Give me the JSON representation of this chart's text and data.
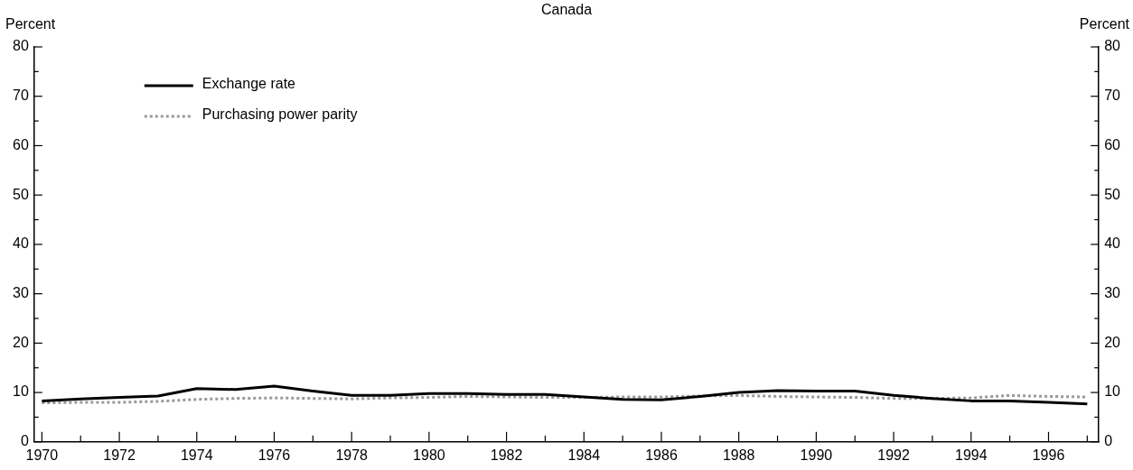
{
  "chart_data": {
    "type": "line",
    "title": "Canada",
    "ylabel": "Percent",
    "y2label": "Percent",
    "x": [
      1970,
      1971,
      1972,
      1973,
      1974,
      1975,
      1976,
      1977,
      1978,
      1979,
      1980,
      1981,
      1982,
      1983,
      1984,
      1985,
      1986,
      1987,
      1988,
      1989,
      1990,
      1991,
      1992,
      1993,
      1994,
      1995,
      1996,
      1997
    ],
    "series": [
      {
        "name": "Exchange rate",
        "color": "#000000",
        "line_style": "solid",
        "values": [
          8.3,
          8.7,
          9.0,
          9.3,
          10.8,
          10.6,
          11.3,
          10.3,
          9.4,
          9.4,
          9.8,
          9.8,
          9.6,
          9.6,
          9.1,
          8.6,
          8.5,
          9.2,
          10.0,
          10.4,
          10.3,
          10.3,
          9.4,
          8.8,
          8.3,
          8.3,
          8.0,
          7.7
        ]
      },
      {
        "name": "Purchasing power parity",
        "color": "#999999",
        "line_style": "dotted",
        "values": [
          7.9,
          8.0,
          8.0,
          8.2,
          8.6,
          8.8,
          8.9,
          8.8,
          8.7,
          8.9,
          9.0,
          9.2,
          9.1,
          9.0,
          9.0,
          9.1,
          9.1,
          9.3,
          9.4,
          9.2,
          9.1,
          9.0,
          8.8,
          8.8,
          8.9,
          9.4,
          9.2,
          9.1
        ]
      }
    ],
    "xlim": [
      1969.8,
      1997.3
    ],
    "xticks": [
      {
        "value": 1970,
        "label": "1970"
      },
      {
        "value": 1971,
        "label": null
      },
      {
        "value": 1972,
        "label": "1972"
      },
      {
        "value": 1973,
        "label": null
      },
      {
        "value": 1974,
        "label": "1974"
      },
      {
        "value": 1975,
        "label": null
      },
      {
        "value": 1976,
        "label": "1976"
      },
      {
        "value": 1977,
        "label": null
      },
      {
        "value": 1978,
        "label": "1978"
      },
      {
        "value": 1979,
        "label": null
      },
      {
        "value": 1980,
        "label": "1980"
      },
      {
        "value": 1981,
        "label": null
      },
      {
        "value": 1982,
        "label": "1982"
      },
      {
        "value": 1983,
        "label": null
      },
      {
        "value": 1984,
        "label": "1984"
      },
      {
        "value": 1985,
        "label": null
      },
      {
        "value": 1986,
        "label": "1986"
      },
      {
        "value": 1987,
        "label": null
      },
      {
        "value": 1988,
        "label": "1988"
      },
      {
        "value": 1989,
        "label": null
      },
      {
        "value": 1990,
        "label": "1990"
      },
      {
        "value": 1991,
        "label": null
      },
      {
        "value": 1992,
        "label": "1992"
      },
      {
        "value": 1993,
        "label": null
      },
      {
        "value": 1994,
        "label": "1994"
      },
      {
        "value": 1995,
        "label": null
      },
      {
        "value": 1996,
        "label": "1996"
      },
      {
        "value": 1997,
        "label": null
      }
    ],
    "ylim": [
      0,
      80
    ],
    "yticks": [
      0,
      {
        "value": 5,
        "label": null
      },
      10,
      {
        "value": 15,
        "label": null
      },
      20,
      {
        "value": 25,
        "label": null
      },
      30,
      {
        "value": 35,
        "label": null
      },
      40,
      {
        "value": 45,
        "label": null
      },
      50,
      {
        "value": 55,
        "label": null
      },
      60,
      {
        "value": 65,
        "label": null
      },
      70,
      {
        "value": 75,
        "label": null
      },
      80
    ],
    "y2lim": [
      0,
      80
    ],
    "y2ticks": [
      0,
      {
        "value": 5,
        "label": null
      },
      10,
      {
        "value": 15,
        "label": null
      },
      20,
      {
        "value": 25,
        "label": null
      },
      30,
      {
        "value": 35,
        "label": null
      },
      40,
      {
        "value": 45,
        "label": null
      },
      50,
      {
        "value": 55,
        "label": null
      },
      60,
      {
        "value": 65,
        "label": null
      },
      70,
      {
        "value": 75,
        "label": null
      },
      80
    ],
    "grid": false,
    "legend": "top left",
    "marker": "none"
  }
}
